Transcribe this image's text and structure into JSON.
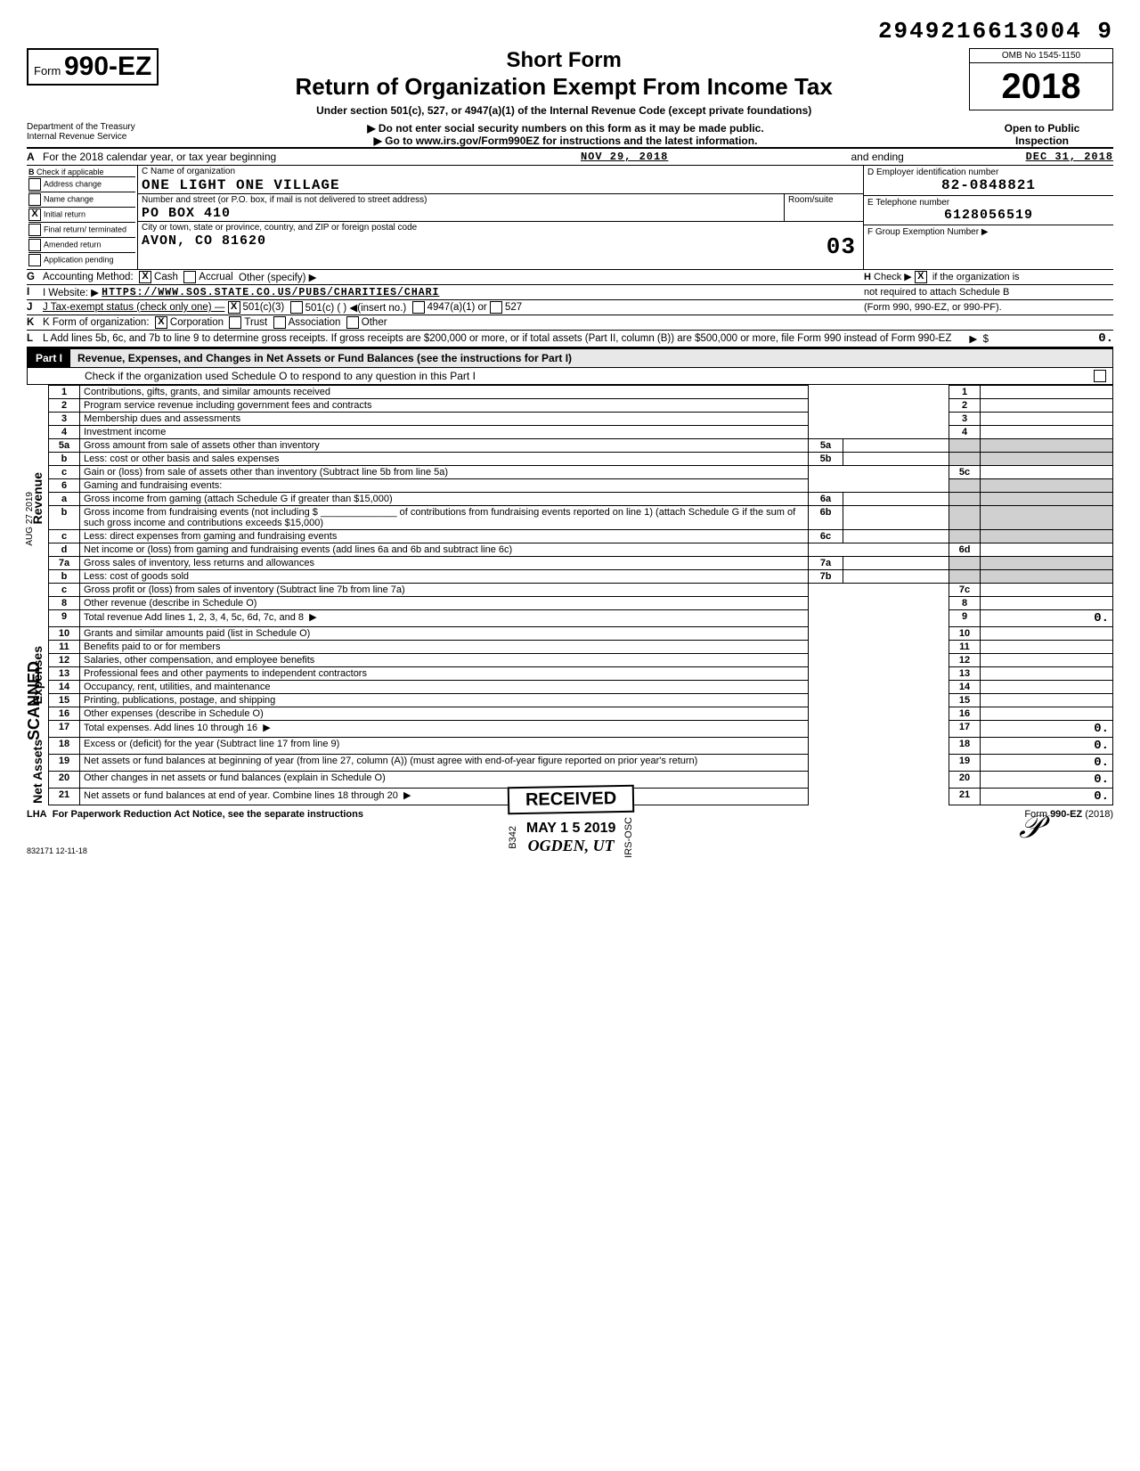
{
  "topnumber": "2949216613004   9",
  "form": {
    "prefix": "Form",
    "num": "990-EZ"
  },
  "title": {
    "short": "Short Form",
    "main": "Return of Organization Exempt From Income Tax",
    "sub": "Under section 501(c), 527, or 4947(a)(1) of the Internal Revenue Code (except private foundations)",
    "line1": "Do not enter social security numbers on this form as it may be made public.",
    "line2": "Go to www.irs.gov/Form990EZ for instructions and the latest information."
  },
  "omb": "OMB No 1545-1150",
  "year": "2018",
  "dept": "Department of the Treasury\nInternal Revenue Service",
  "open": "Open to Public\nInspection",
  "lineA": {
    "label": "For the 2018 calendar year, or tax year beginning",
    "begin": "NOV 29, 2018",
    "mid": "and ending",
    "end": "DEC 31, 2018"
  },
  "boxB": {
    "hdr": "Check if applicable",
    "items": [
      "Address change",
      "Name change",
      "Initial return",
      "Final return/ terminated",
      "Amended return",
      "Application pending"
    ],
    "checked": [
      false,
      false,
      true,
      false,
      false,
      false
    ]
  },
  "boxC": {
    "nameLabel": "C Name of organization",
    "name": "ONE LIGHT ONE VILLAGE",
    "addrLabel": "Number and street (or P.O. box, if mail is not delivered to street address)",
    "addr": "PO BOX 410",
    "cityLabel": "City or town, state or province, country, and ZIP or foreign postal code",
    "city": "AVON, CO  81620",
    "roomLabel": "Room/suite"
  },
  "boxD": {
    "label": "D Employer identification number",
    "val": "82-0848821"
  },
  "boxE": {
    "label": "E  Telephone number",
    "val": "6128056519"
  },
  "boxF": {
    "label": "F Group Exemption Number ▶",
    "stamp": "03"
  },
  "lineG": "G  Accounting Method:",
  "gOpts": [
    "Cash",
    "Accrual",
    "Other (specify) ▶"
  ],
  "lineH": "H Check ▶ [X] if the organization is not required to attach Schedule B (Form 990, 990-EZ, or 990-PF).",
  "lineI": {
    "label": "I   Website: ▶",
    "val": "HTTPS://WWW.SOS.STATE.CO.US/PUBS/CHARITIES/CHARI"
  },
  "lineJ": "J   Tax-exempt status (check only one) —",
  "jOpts": [
    "501(c)(3)",
    "501(c) (        ) ◀(insert no.)",
    "4947(a)(1) or",
    "527"
  ],
  "lineK": "K  Form of organization:",
  "kOpts": [
    "Corporation",
    "Trust",
    "Association",
    "Other"
  ],
  "lineL": "L  Add lines 5b, 6c, and 7b to line 9 to determine gross receipts. If gross receipts are $200,000 or more, or if total assets (Part II, column (B)) are $500,000 or more, file Form 990 instead of Form 990-EZ",
  "lineLval": "0.",
  "part1": {
    "num": "Part I",
    "title": "Revenue, Expenses, and Changes in Net Assets or Fund Balances (see the instructions for Part I)",
    "check": "Check if the organization used Schedule O to respond to any question in this Part I"
  },
  "rows": [
    {
      "n": "1",
      "t": "Contributions, gifts, grants, and similar amounts received",
      "r": "1"
    },
    {
      "n": "2",
      "t": "Program service revenue including government fees and contracts",
      "r": "2"
    },
    {
      "n": "3",
      "t": "Membership dues and assessments",
      "r": "3"
    },
    {
      "n": "4",
      "t": "Investment income",
      "r": "4"
    },
    {
      "n": "5a",
      "t": "Gross amount from sale of assets other than inventory",
      "m": "5a"
    },
    {
      "n": "b",
      "t": "Less: cost or other basis and sales expenses",
      "m": "5b"
    },
    {
      "n": "c",
      "t": "Gain or (loss) from sale of assets other than inventory (Subtract line 5b from line 5a)",
      "r": "5c"
    },
    {
      "n": "6",
      "t": "Gaming and fundraising events:"
    },
    {
      "n": "a",
      "t": "Gross income from gaming (attach Schedule G if greater than $15,000)",
      "m": "6a"
    },
    {
      "n": "b",
      "t": "Gross income from fundraising events (not including $ ______________ of contributions from fundraising events reported on line 1) (attach Schedule G if the sum of such gross income and contributions exceeds $15,000)",
      "m": "6b"
    },
    {
      "n": "c",
      "t": "Less: direct expenses from gaming and fundraising events",
      "m": "6c"
    },
    {
      "n": "d",
      "t": "Net income or (loss) from gaming and fundraising events (add lines 6a and 6b and subtract line 6c)",
      "r": "6d"
    },
    {
      "n": "7a",
      "t": "Gross sales of inventory, less returns and allowances",
      "m": "7a"
    },
    {
      "n": "b",
      "t": "Less: cost of goods sold",
      "m": "7b"
    },
    {
      "n": "c",
      "t": "Gross profit or (loss) from sales of inventory (Subtract line 7b from line 7a)",
      "r": "7c"
    },
    {
      "n": "8",
      "t": "Other revenue (describe in Schedule O)",
      "r": "8"
    },
    {
      "n": "9",
      "t": "Total revenue  Add lines 1, 2, 3, 4, 5c, 6d, 7c, and 8",
      "r": "9",
      "arrow": true,
      "val": "0."
    },
    {
      "n": "10",
      "t": "Grants and similar amounts paid (list in Schedule O)",
      "r": "10"
    },
    {
      "n": "11",
      "t": "Benefits paid to or for members",
      "r": "11"
    },
    {
      "n": "12",
      "t": "Salaries, other compensation, and employee benefits",
      "r": "12"
    },
    {
      "n": "13",
      "t": "Professional fees and other payments to independent contractors",
      "r": "13"
    },
    {
      "n": "14",
      "t": "Occupancy, rent, utilities, and maintenance",
      "r": "14"
    },
    {
      "n": "15",
      "t": "Printing, publications, postage, and shipping",
      "r": "15"
    },
    {
      "n": "16",
      "t": "Other expenses (describe in Schedule O)",
      "r": "16"
    },
    {
      "n": "17",
      "t": "Total expenses. Add lines 10 through 16",
      "r": "17",
      "arrow": true,
      "val": "0."
    },
    {
      "n": "18",
      "t": "Excess or (deficit) for the year (Subtract line 17 from line 9)",
      "r": "18",
      "val": "0."
    },
    {
      "n": "19",
      "t": "Net assets or fund balances at beginning of year (from line 27, column (A)) (must agree with end-of-year figure reported on prior year's return)",
      "r": "19",
      "val": "0."
    },
    {
      "n": "20",
      "t": "Other changes in net assets or fund balances (explain in Schedule O)",
      "r": "20",
      "val": "0."
    },
    {
      "n": "21",
      "t": "Net assets or fund balances at end of year. Combine lines 18 through 20",
      "r": "21",
      "arrow": true,
      "val": "0."
    }
  ],
  "vertLabels": [
    "Revenue",
    "Expenses",
    "Net Assets"
  ],
  "scanned": "SCANNED",
  "aug": "AUG 27 2019",
  "received": {
    "title": "RECEIVED",
    "date": "MAY 1 5 2019",
    "place": "OGDEN, UT",
    "side1": "B342",
    "side2": "IRS-OSC"
  },
  "footer": {
    "left": "LHA  For Paperwork Reduction Act Notice, see the separate instructions",
    "right": "Form 990-EZ (2018)",
    "code": "832171  12-11-18"
  }
}
